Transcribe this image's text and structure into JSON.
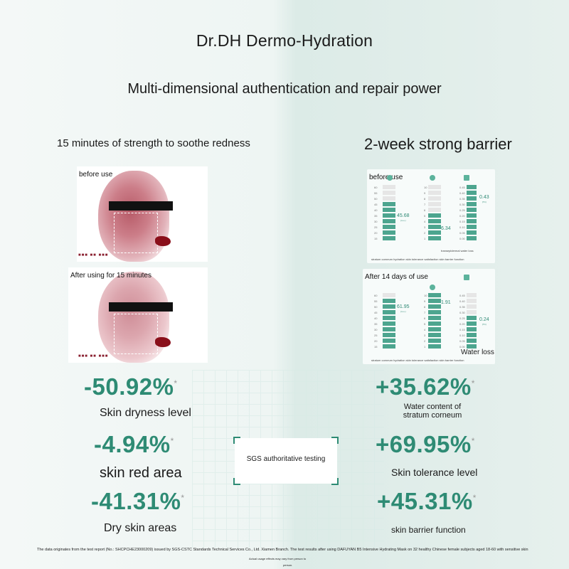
{
  "header": {
    "title": "Dr.DH Dermo-Hydration",
    "subtitle": "Multi-dimensional authentication and repair power"
  },
  "left": {
    "heading": "15 minutes of strength to soothe redness",
    "before_caption": "before use",
    "after_caption": "After using for 15 minutes"
  },
  "right": {
    "heading": "2-week strong barrier",
    "before_caption": "before use",
    "after_caption": "After 14 days of use",
    "before_values": {
      "stratum": "45.68",
      "stratum_unit": "(m.u.)",
      "tolerance": "6.34",
      "barrier": "0.43",
      "barrier_unit": "(TC)",
      "barrier_tag": "transepidermal water loss"
    },
    "after_values": {
      "stratum": "61.95",
      "stratum_unit": "(m.u.)",
      "tolerance": "1.91",
      "barrier": "0.24",
      "barrier_unit": "(TC)",
      "barrier_tag": "Water loss"
    },
    "chart_footer": "stratum corneum hydration skin tolerance satisfaction skin barrier function",
    "axis_left": [
      "60",
      "55",
      "50",
      "45",
      "40",
      "35",
      "30",
      "25",
      "20",
      "15"
    ],
    "axis_mid": [
      "10",
      "9",
      "8",
      "7",
      "6",
      "5",
      "4",
      "3",
      "2",
      "1"
    ],
    "axis_right": [
      "0.45",
      "0.40",
      "0.35",
      "0.30",
      "0.25",
      "0.20",
      "0.15",
      "0.10",
      "0.05",
      "0.00"
    ]
  },
  "stats_left": [
    {
      "value": "-50.92%",
      "label": "Skin dryness level"
    },
    {
      "value": "-4.94%",
      "label": "skin red area"
    },
    {
      "value": "-41.31%",
      "label": "Dry skin areas"
    }
  ],
  "stats_right": [
    {
      "value": "+35.62%",
      "label": "Water content of stratum corneum"
    },
    {
      "value": "+69.95%",
      "label": "Skin tolerance level"
    },
    {
      "value": "+45.31%",
      "label": "skin barrier function"
    }
  ],
  "asterisk": "*",
  "sgs_label": "SGS authoritative testing",
  "footnote": {
    "line1": "The data originates from the test report (No.: SHCPCHE23000209) issued by SGS-CSTC Standards Technical Services Co., Ltd. Xiamen Branch. The test results after using DAFUYAN B5 Intensive Hydrating Mask on 32 healthy Chinese female subjects aged 18-60 with sensitive skin",
    "line2": "Actual usage effects may vary from person to",
    "line3": "person."
  },
  "colors": {
    "accent": "#2e8b74",
    "gauge": "#4da58f"
  }
}
